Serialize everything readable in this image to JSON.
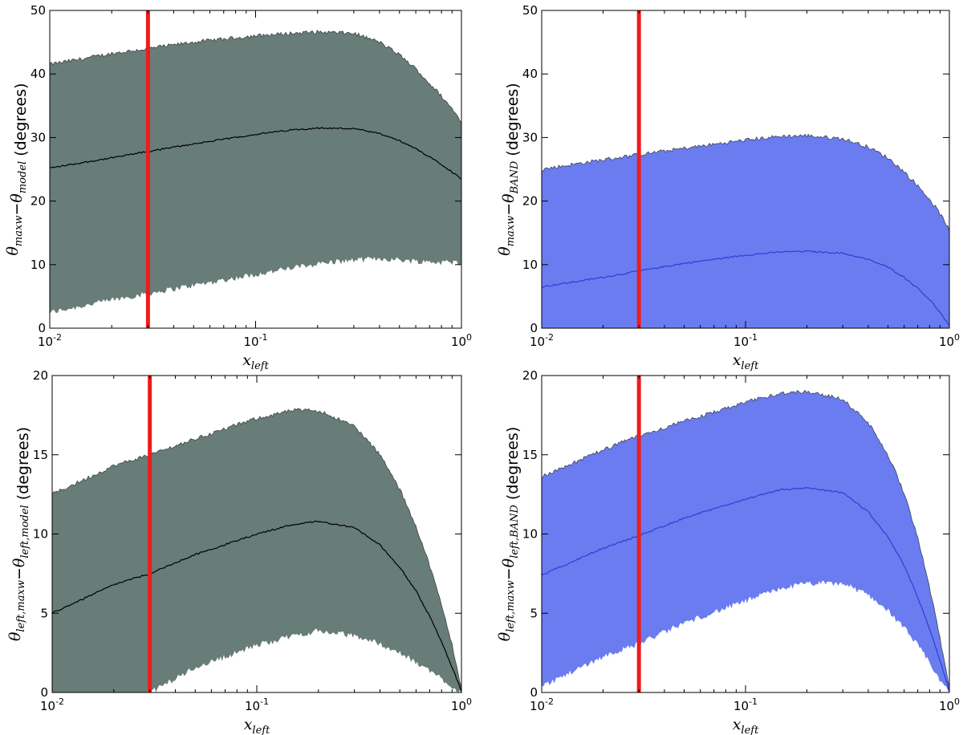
{
  "chart_data": [
    {
      "id": "top-left",
      "type": "area",
      "xscale": "log",
      "xlim": [
        0.01,
        1
      ],
      "ylim": [
        0,
        50
      ],
      "yticks": [
        0,
        10,
        20,
        30,
        40,
        50
      ],
      "xlabel": "x_left",
      "ylabel": "θ_maxw − θ_model (degrees)",
      "fill_color": "#687c78",
      "line_color": "#000000",
      "marker_line": {
        "x": 0.03,
        "color": "#ee1c1c"
      },
      "x": [
        0.01,
        0.02,
        0.03,
        0.05,
        0.1,
        0.15,
        0.2,
        0.3,
        0.4,
        0.5,
        0.6,
        0.7,
        0.8,
        0.9,
        1.0
      ],
      "upper": [
        41.5,
        43.2,
        44.0,
        45.0,
        46.0,
        46.4,
        46.6,
        46.4,
        45.0,
        43.0,
        40.8,
        38.5,
        36.5,
        34.5,
        32.5
      ],
      "mean": [
        25.2,
        26.8,
        27.8,
        29.0,
        30.5,
        31.2,
        31.5,
        31.4,
        30.6,
        29.5,
        28.2,
        27.0,
        25.8,
        24.6,
        23.5
      ],
      "lower": [
        2.5,
        4.5,
        5.5,
        6.8,
        8.5,
        9.5,
        10.2,
        10.8,
        11.0,
        10.8,
        10.6,
        10.5,
        10.4,
        10.4,
        10.5
      ]
    },
    {
      "id": "top-right",
      "type": "area",
      "xscale": "log",
      "xlim": [
        0.01,
        1
      ],
      "ylim": [
        0,
        50
      ],
      "yticks": [
        0,
        10,
        20,
        30,
        40,
        50
      ],
      "xlabel": "x_left",
      "ylabel": "θ_maxw − θ_BAND (degrees)",
      "fill_color": "#6a7cf0",
      "line_color": "#2b3fd6",
      "marker_line": {
        "x": 0.03,
        "color": "#ee1c1c"
      },
      "x": [
        0.01,
        0.02,
        0.03,
        0.05,
        0.1,
        0.15,
        0.2,
        0.3,
        0.4,
        0.5,
        0.6,
        0.7,
        0.8,
        0.9,
        1.0
      ],
      "upper": [
        25.0,
        26.5,
        27.3,
        28.3,
        29.6,
        30.2,
        30.3,
        29.8,
        28.5,
        26.8,
        24.6,
        22.4,
        20.3,
        18.0,
        15.5
      ],
      "mean": [
        6.5,
        8.0,
        9.0,
        10.2,
        11.5,
        12.0,
        12.1,
        11.8,
        10.8,
        9.6,
        8.0,
        6.3,
        4.5,
        2.5,
        0.3
      ],
      "lower": [
        0,
        0,
        0,
        0,
        0,
        0,
        0,
        0,
        0,
        0,
        0,
        0,
        0,
        0,
        0
      ]
    },
    {
      "id": "bottom-left",
      "type": "area",
      "xscale": "log",
      "xlim": [
        0.01,
        1
      ],
      "ylim": [
        0,
        20
      ],
      "yticks": [
        0,
        5,
        10,
        15,
        20
      ],
      "xlabel": "x_left",
      "ylabel": "θ_left,maxw − θ_left,model (degrees)",
      "fill_color": "#687c78",
      "line_color": "#000000",
      "marker_line": {
        "x": 0.03,
        "color": "#ee1c1c"
      },
      "x": [
        0.01,
        0.02,
        0.03,
        0.05,
        0.1,
        0.15,
        0.2,
        0.3,
        0.4,
        0.5,
        0.6,
        0.7,
        0.8,
        0.9,
        1.0
      ],
      "upper": [
        12.5,
        14.3,
        15.0,
        16.0,
        17.3,
        17.8,
        17.8,
        16.8,
        15.0,
        12.8,
        10.5,
        8.0,
        5.5,
        3.0,
        0.3
      ],
      "mean": [
        5.0,
        6.8,
        7.5,
        8.7,
        10.0,
        10.6,
        10.8,
        10.4,
        9.3,
        7.9,
        6.4,
        4.8,
        3.2,
        1.6,
        0.1
      ],
      "lower": [
        0,
        0,
        0,
        1.6,
        3.0,
        3.6,
        3.9,
        3.6,
        3.1,
        2.5,
        1.9,
        1.4,
        0.9,
        0.4,
        0
      ]
    },
    {
      "id": "bottom-right",
      "type": "area",
      "xscale": "log",
      "xlim": [
        0.01,
        1
      ],
      "ylim": [
        0,
        20
      ],
      "yticks": [
        0,
        5,
        10,
        15,
        20
      ],
      "xlabel": "x_left",
      "ylabel": "θ_left,maxw − θ_left,BAND (degrees)",
      "fill_color": "#6a7cf0",
      "line_color": "#2b3fd6",
      "marker_line": {
        "x": 0.03,
        "color": "#ee1c1c"
      },
      "x": [
        0.01,
        0.02,
        0.03,
        0.05,
        0.1,
        0.15,
        0.2,
        0.3,
        0.4,
        0.5,
        0.6,
        0.7,
        0.8,
        0.9,
        1.0
      ],
      "upper": [
        13.6,
        15.3,
        16.2,
        17.1,
        18.3,
        18.9,
        19.0,
        18.5,
        17.0,
        15.0,
        12.6,
        9.8,
        6.6,
        3.4,
        0.3
      ],
      "mean": [
        7.4,
        9.1,
        9.9,
        11.0,
        12.2,
        12.8,
        12.9,
        12.6,
        11.4,
        9.8,
        8.0,
        6.0,
        4.0,
        2.0,
        0.1
      ],
      "lower": [
        0.4,
        2.3,
        3.1,
        4.4,
        5.8,
        6.6,
        6.9,
        6.9,
        6.2,
        5.2,
        4.1,
        3.0,
        1.9,
        0.8,
        0
      ]
    }
  ]
}
